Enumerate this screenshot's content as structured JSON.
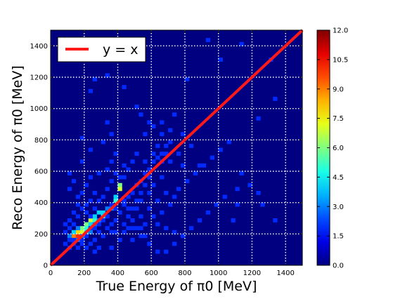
{
  "chart_data": {
    "type": "heatmap",
    "xlabel": "True Energy of π0 [MeV]",
    "ylabel": "Reco Energy of π0 [MeV]",
    "xlim": [
      0,
      1500
    ],
    "ylim": [
      0,
      1500
    ],
    "x_ticks": [
      0,
      200,
      400,
      600,
      800,
      1000,
      1200,
      1400
    ],
    "y_ticks": [
      0,
      200,
      400,
      600,
      800,
      1000,
      1200,
      1400
    ],
    "grid": true,
    "grid_style": "dotted white",
    "bin_width": 25,
    "colormap": "jet",
    "colorbar": {
      "range": [
        0,
        12
      ],
      "ticks": [
        "0.0",
        "1.5",
        "3.0",
        "4.5",
        "6.0",
        "7.5",
        "9.0",
        "10.5",
        "12.0"
      ]
    },
    "line": {
      "label": "y = x",
      "x": [
        0,
        1500
      ],
      "y": [
        0,
        1500
      ],
      "color": "#ff1a1a"
    },
    "legend": {
      "position": "top-left",
      "entries": [
        "y = x"
      ]
    },
    "cells": [
      [
        125,
        175,
        9
      ],
      [
        150,
        175,
        10
      ],
      [
        150,
        200,
        8
      ],
      [
        175,
        200,
        7
      ],
      [
        175,
        225,
        6
      ],
      [
        200,
        250,
        6
      ],
      [
        200,
        225,
        5
      ],
      [
        225,
        275,
        7
      ],
      [
        250,
        275,
        5
      ],
      [
        225,
        250,
        4
      ],
      [
        250,
        300,
        4
      ],
      [
        275,
        325,
        4
      ],
      [
        300,
        300,
        5
      ],
      [
        300,
        325,
        4
      ],
      [
        325,
        350,
        3
      ],
      [
        350,
        350,
        3
      ],
      [
        375,
        400,
        5
      ],
      [
        375,
        425,
        4
      ],
      [
        400,
        475,
        7
      ],
      [
        400,
        500,
        6
      ],
      [
        125,
        200,
        4
      ],
      [
        100,
        175,
        3
      ],
      [
        150,
        150,
        3
      ],
      [
        175,
        175,
        3
      ],
      [
        150,
        225,
        3
      ],
      [
        200,
        200,
        4
      ],
      [
        225,
        200,
        3
      ],
      [
        250,
        250,
        3
      ],
      [
        275,
        275,
        3
      ],
      [
        325,
        300,
        2
      ],
      [
        350,
        375,
        2
      ],
      [
        375,
        350,
        2
      ],
      [
        300,
        275,
        2
      ],
      [
        275,
        250,
        2
      ],
      [
        250,
        225,
        2
      ],
      [
        225,
        225,
        2
      ],
      [
        200,
        175,
        2
      ],
      [
        175,
        150,
        2
      ],
      [
        125,
        150,
        2
      ],
      [
        200,
        325,
        2
      ],
      [
        200,
        375,
        2
      ],
      [
        250,
        350,
        2
      ],
      [
        350,
        250,
        2
      ],
      [
        375,
        275,
        2
      ],
      [
        400,
        325,
        2
      ],
      [
        425,
        375,
        2
      ],
      [
        425,
        400,
        2
      ],
      [
        450,
        425,
        2
      ],
      [
        475,
        450,
        2
      ],
      [
        500,
        500,
        2
      ],
      [
        525,
        525,
        2
      ],
      [
        550,
        575,
        2
      ],
      [
        575,
        600,
        2
      ],
      [
        600,
        650,
        2
      ],
      [
        625,
        675,
        2
      ],
      [
        650,
        700,
        2
      ],
      [
        675,
        750,
        2
      ],
      [
        700,
        775,
        2
      ],
      [
        425,
        550,
        2
      ],
      [
        450,
        600,
        2
      ],
      [
        375,
        575,
        2
      ],
      [
        325,
        475,
        2
      ],
      [
        275,
        400,
        2
      ],
      [
        225,
        400,
        2
      ],
      [
        350,
        200,
        2
      ],
      [
        300,
        175,
        2
      ],
      [
        250,
        150,
        2
      ],
      [
        225,
        125,
        2
      ],
      [
        175,
        125,
        2
      ],
      [
        200,
        100,
        2
      ],
      [
        150,
        100,
        2
      ],
      [
        125,
        125,
        2
      ],
      [
        100,
        100,
        2
      ],
      [
        125,
        250,
        2
      ],
      [
        100,
        225,
        2
      ],
      [
        150,
        300,
        2
      ],
      [
        175,
        350,
        2
      ],
      [
        225,
        300,
        2
      ],
      [
        275,
        200,
        2
      ],
      [
        325,
        225,
        2
      ],
      [
        375,
        200,
        2
      ],
      [
        425,
        250,
        2
      ],
      [
        450,
        300,
        2
      ],
      [
        475,
        350,
        2
      ],
      [
        500,
        400,
        2
      ],
      [
        525,
        450,
        2
      ],
      [
        550,
        500,
        2
      ],
      [
        575,
        550,
        2
      ],
      [
        425,
        200,
        2
      ],
      [
        450,
        225,
        2
      ],
      [
        475,
        225,
        2
      ],
      [
        500,
        225,
        2
      ],
      [
        525,
        225,
        2
      ],
      [
        300,
        425,
        2
      ],
      [
        250,
        450,
        2
      ],
      [
        200,
        500,
        2
      ],
      [
        350,
        525,
        2
      ],
      [
        400,
        550,
        2
      ],
      [
        425,
        625,
        2
      ],
      [
        475,
        650,
        2
      ],
      [
        500,
        700,
        2
      ],
      [
        550,
        650,
        2
      ],
      [
        600,
        700,
        2
      ],
      [
        625,
        750,
        2
      ],
      [
        650,
        650,
        2
      ],
      [
        675,
        700,
        2
      ],
      [
        700,
        650,
        2
      ],
      [
        750,
        700,
        2
      ],
      [
        650,
        550,
        2
      ],
      [
        600,
        500,
        2
      ],
      [
        575,
        450,
        2
      ],
      [
        525,
        400,
        2
      ],
      [
        500,
        350,
        2
      ],
      [
        450,
        350,
        2
      ],
      [
        475,
        275,
        2
      ],
      [
        525,
        300,
        2
      ],
      [
        575,
        350,
        2
      ],
      [
        625,
        400,
        2
      ],
      [
        675,
        450,
        2
      ],
      [
        325,
        900,
        2
      ],
      [
        425,
        1125,
        2
      ],
      [
        325,
        1200,
        2
      ],
      [
        250,
        1175,
        2
      ],
      [
        225,
        1100,
        2
      ],
      [
        500,
        1000,
        2
      ],
      [
        525,
        950,
        2
      ],
      [
        575,
        900,
        2
      ],
      [
        650,
        825,
        2
      ],
      [
        700,
        850,
        2
      ],
      [
        725,
        950,
        2
      ],
      [
        800,
        1175,
        2
      ],
      [
        925,
        1425,
        2
      ],
      [
        1000,
        1300,
        2
      ],
      [
        1125,
        1400,
        2
      ],
      [
        1325,
        1050,
        2
      ],
      [
        1225,
        925,
        2
      ],
      [
        1300,
        1300,
        2
      ],
      [
        1325,
        275,
        2
      ],
      [
        1100,
        375,
        2
      ],
      [
        1075,
        275,
        2
      ],
      [
        875,
        625,
        2
      ],
      [
        725,
        200,
        2
      ],
      [
        675,
        225,
        2
      ],
      [
        775,
        625,
        2
      ],
      [
        475,
        150,
        2
      ],
      [
        400,
        150,
        2
      ],
      [
        350,
        100,
        2
      ],
      [
        275,
        100,
        2
      ],
      [
        250,
        75,
        2
      ],
      [
        525,
        175,
        2
      ],
      [
        775,
        825,
        2
      ],
      [
        825,
        750,
        2
      ],
      [
        650,
        900,
        2
      ],
      [
        600,
        875,
        2
      ],
      [
        550,
        825,
        2
      ],
      [
        350,
        825,
        2
      ],
      [
        300,
        775,
        2
      ],
      [
        225,
        725,
        2
      ],
      [
        175,
        650,
        2
      ],
      [
        125,
        525,
        2
      ],
      [
        100,
        475,
        2
      ],
      [
        150,
        425,
        2
      ],
      [
        100,
        575,
        2
      ],
      [
        175,
        800,
        2
      ],
      [
        350,
        650,
        2
      ],
      [
        375,
        700,
        2
      ],
      [
        325,
        600,
        2
      ],
      [
        275,
        575,
        2
      ],
      [
        225,
        550,
        2
      ],
      [
        175,
        450,
        2
      ],
      [
        150,
        375,
        2
      ],
      [
        125,
        325,
        2
      ],
      [
        100,
        275,
        2
      ],
      [
        75,
        250,
        2
      ],
      [
        75,
        200,
        2
      ],
      [
        100,
        150,
        2
      ],
      [
        75,
        125,
        2
      ],
      [
        550,
        250,
        2
      ],
      [
        600,
        300,
        2
      ],
      [
        625,
        250,
        2
      ],
      [
        650,
        325,
        2
      ],
      [
        700,
        375,
        2
      ],
      [
        725,
        425,
        2
      ],
      [
        750,
        475,
        2
      ],
      [
        800,
        525,
        2
      ],
      [
        850,
        575,
        2
      ],
      [
        900,
        625,
        2
      ],
      [
        950,
        675,
        2
      ],
      [
        1000,
        725,
        2
      ],
      [
        1050,
        775,
        2
      ],
      [
        1125,
        575,
        2
      ],
      [
        1175,
        500,
        2
      ],
      [
        1225,
        450,
        2
      ],
      [
        1250,
        375,
        2
      ],
      [
        1100,
        475,
        2
      ],
      [
        1025,
        425,
        2
      ],
      [
        975,
        375,
        2
      ],
      [
        925,
        325,
        2
      ],
      [
        875,
        275,
        2
      ],
      [
        825,
        225,
        2
      ],
      [
        775,
        175,
        2
      ],
      [
        725,
        125,
        2
      ],
      [
        675,
        75,
        2
      ],
      [
        625,
        75,
        2
      ],
      [
        575,
        125,
        2
      ],
      [
        550,
        175,
        2
      ]
    ]
  }
}
